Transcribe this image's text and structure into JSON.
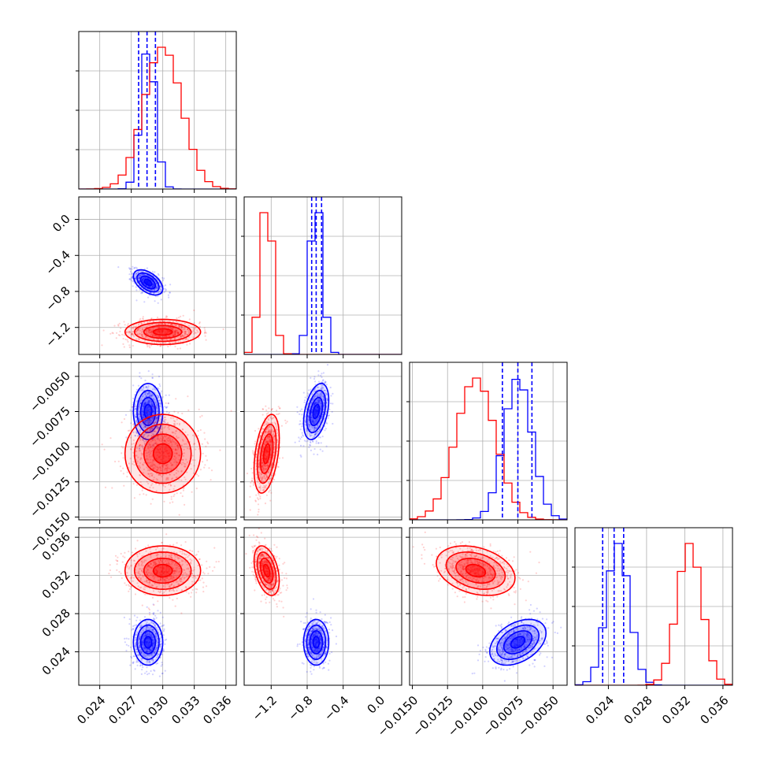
{
  "chart_data": {
    "type": "corner",
    "parameters": [
      {
        "ticks": [
          0.024,
          0.027,
          0.03,
          0.033,
          0.036
        ],
        "tick_labels": [
          "0.024",
          "0.027",
          "0.030",
          "0.033",
          "0.036"
        ],
        "range": [
          0.022,
          0.037
        ]
      },
      {
        "ticks": [
          -1.2,
          -0.8,
          -0.4,
          0.0
        ],
        "tick_labels": [
          "−1.2",
          "−0.8",
          "−0.4",
          "0.0"
        ],
        "range": [
          -1.5,
          0.25
        ]
      },
      {
        "ticks": [
          -0.015,
          -0.0125,
          -0.01,
          -0.0075,
          -0.005
        ],
        "tick_labels": [
          "−0.0150",
          "−0.0125",
          "−0.0100",
          "−0.0075",
          "−0.0050"
        ],
        "range": [
          -0.0152,
          -0.004
        ]
      },
      {
        "ticks": [
          0.024,
          0.028,
          0.032,
          0.036
        ],
        "tick_labels": [
          "0.024",
          "0.028",
          "0.032",
          "0.036"
        ],
        "range": [
          0.0205,
          0.037
        ]
      }
    ],
    "series": [
      {
        "color": "#0000ff",
        "mean": [
          0.0286,
          -0.7,
          -0.0075,
          0.025
        ],
        "std": [
          0.0007,
          0.07,
          0.001,
          0.0012
        ],
        "corr_pairs": [
          [
            1,
            0,
            -0.5
          ],
          [
            3,
            2,
            0.4
          ],
          [
            2,
            1,
            0.4
          ]
        ],
        "quantiles": [
          [
            0.0277,
            0.0285,
            0.0293
          ],
          [
            -0.75,
            -0.7,
            -0.64
          ],
          [
            -0.0086,
            -0.0075,
            -0.0065
          ],
          [
            0.0234,
            0.0246,
            0.0256
          ]
        ]
      },
      {
        "color": "#ff0000",
        "mean": [
          0.03,
          -1.25,
          -0.0105,
          0.0325
        ],
        "std": [
          0.0018,
          0.07,
          0.0014,
          0.0013
        ],
        "corr_pairs": [
          [
            3,
            2,
            -0.3
          ],
          [
            2,
            1,
            0.4
          ],
          [
            3,
            1,
            -0.4
          ]
        ]
      }
    ]
  }
}
